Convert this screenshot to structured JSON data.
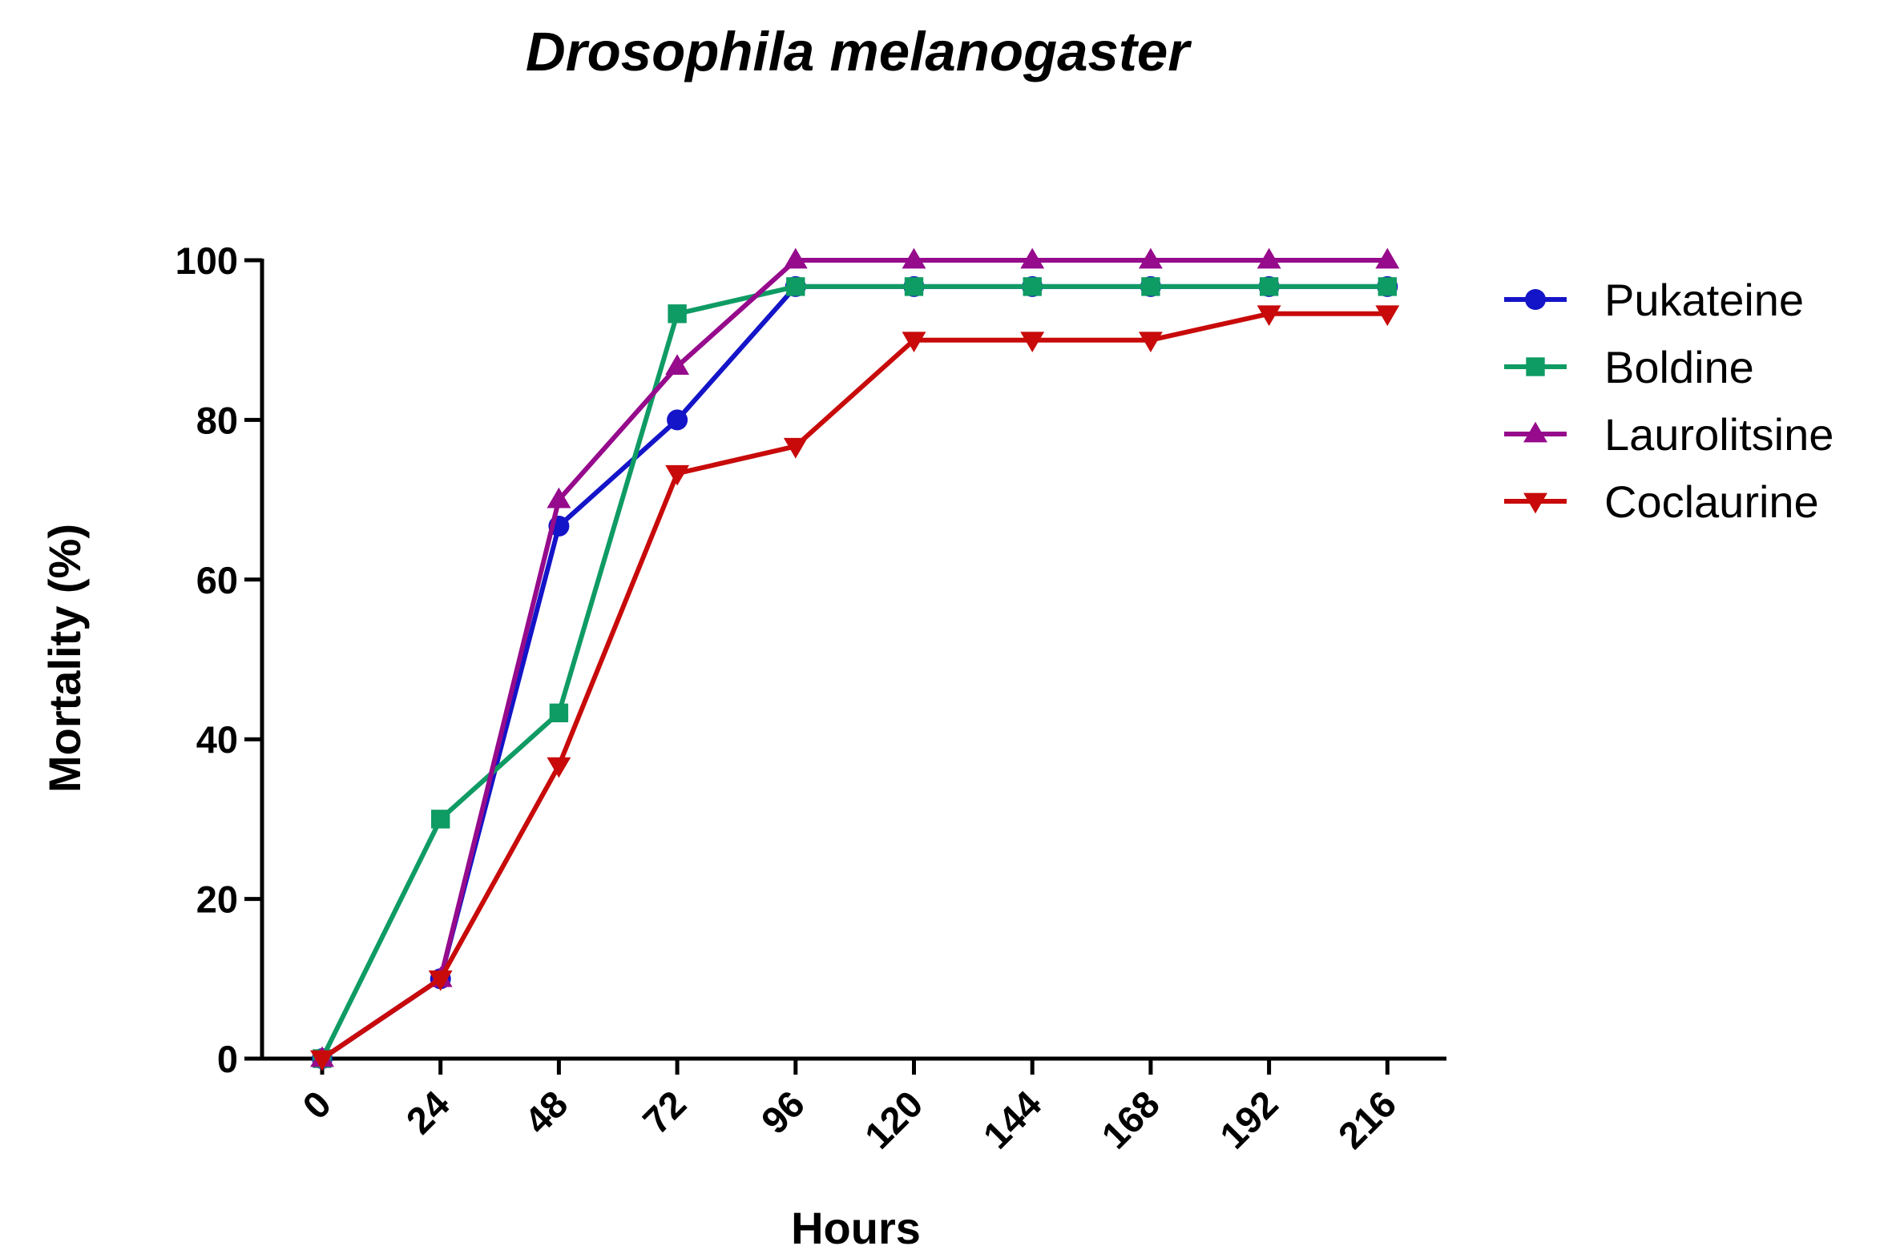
{
  "chart_data": {
    "type": "line",
    "title": "Drosophila melanogaster",
    "xlabel": "Hours",
    "ylabel": "Mortality  (%)",
    "x": [
      0,
      24,
      48,
      72,
      96,
      120,
      144,
      168,
      192,
      216
    ],
    "x_tick_labels": [
      "0",
      "24",
      "48",
      "72",
      "96",
      "120",
      "144",
      "168",
      "192",
      "216"
    ],
    "y_ticks": [
      0,
      20,
      40,
      60,
      80,
      100
    ],
    "y_tick_labels": [
      "0",
      "20",
      "40",
      "60",
      "80",
      "100"
    ],
    "ylim": [
      0,
      100
    ],
    "grid": false,
    "legend_position": "right",
    "series": [
      {
        "name": "Pukateine",
        "color": "#1414c8",
        "marker": "circle",
        "values": [
          0,
          10,
          66.7,
          80,
          96.7,
          96.7,
          96.7,
          96.7,
          96.7,
          96.7
        ]
      },
      {
        "name": "Boldine",
        "color": "#0f9b64",
        "marker": "square",
        "values": [
          0,
          30,
          43.3,
          93.3,
          96.7,
          96.7,
          96.7,
          96.7,
          96.7,
          96.7
        ]
      },
      {
        "name": "Laurolitsine",
        "color": "#960a8c",
        "marker": "triangle-up",
        "values": [
          0,
          10,
          70,
          86.7,
          100,
          100,
          100,
          100,
          100,
          100
        ]
      },
      {
        "name": "Coclaurine",
        "color": "#c80a0a",
        "marker": "triangle-down",
        "values": [
          0,
          10,
          36.7,
          73.3,
          76.7,
          90,
          90,
          90,
          93.3,
          93.3
        ]
      }
    ]
  }
}
